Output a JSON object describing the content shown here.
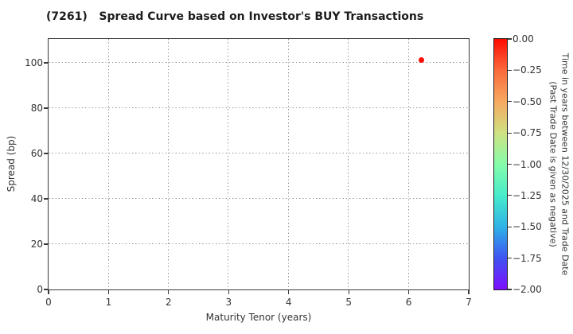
{
  "chart_data": {
    "type": "scatter",
    "title": "(7261)   Spread Curve based on Investor's BUY Transactions",
    "xlabel": "Maturity Tenor (years)",
    "ylabel": "Spread (bp)",
    "xlim": [
      0,
      7
    ],
    "ylim": [
      0,
      110.5
    ],
    "xtick_values": [
      0,
      1,
      2,
      3,
      4,
      5,
      6,
      7
    ],
    "xtick_labels": [
      "0",
      "1",
      "2",
      "3",
      "4",
      "5",
      "6",
      "7"
    ],
    "ytick_values": [
      0,
      20,
      40,
      60,
      80,
      100
    ],
    "ytick_labels": [
      "0",
      "20",
      "40",
      "60",
      "80",
      "100"
    ],
    "grid": true,
    "legend": "none",
    "points": [
      {
        "x": 6.21,
        "y": 101,
        "color_value": 0.0,
        "color": "#f90d04"
      }
    ],
    "colorbar": {
      "vmax": 0.0,
      "vmin": -2.0,
      "tick_labels": [
        "0.00",
        "−0.25",
        "−0.50",
        "−0.75",
        "−1.00",
        "−1.25",
        "−1.50",
        "−1.75",
        "−2.00"
      ],
      "label_line1": "Time in years between 12/30/2025 and Trade Date",
      "label_line2": "(Past Trade Date is given as negative)",
      "gradient_top_to_bottom": [
        "#fd0a03",
        "#fb6a3c",
        "#f6a95f",
        "#cfe183",
        "#86fcaa",
        "#46ecca",
        "#2fb2e7",
        "#4053f2",
        "#7d0dfe"
      ]
    }
  }
}
